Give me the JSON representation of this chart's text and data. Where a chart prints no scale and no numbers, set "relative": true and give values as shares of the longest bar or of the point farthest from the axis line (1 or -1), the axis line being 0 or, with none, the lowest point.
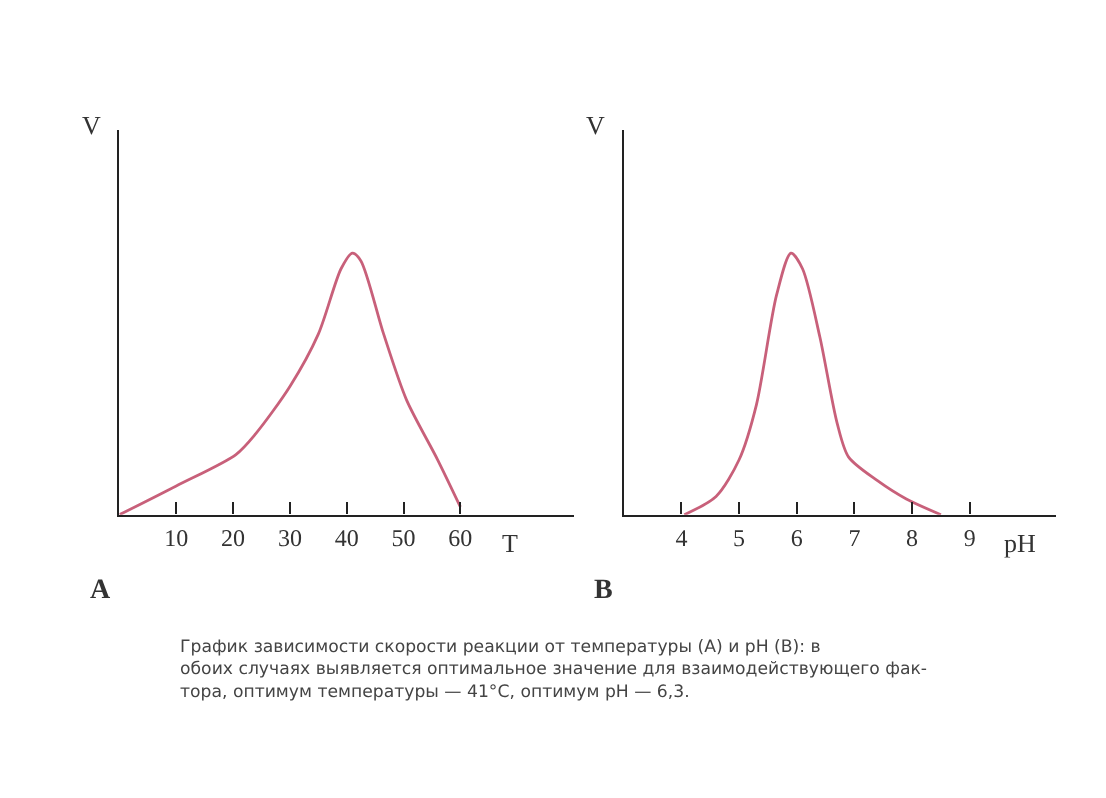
{
  "chart_data": [
    {
      "type": "line",
      "relative": true,
      "xlabel": "T",
      "ylabel": "V",
      "tick_labels": "x",
      "marker": "none",
      "line_style": "solid",
      "xlim": [
        0,
        80
      ],
      "xticks": [
        10,
        20,
        30,
        40,
        50,
        60
      ],
      "x": [
        0,
        10,
        20.5,
        24,
        30,
        35,
        39,
        41,
        42.5,
        46.5,
        50.5,
        56,
        60
      ],
      "series": [
        {
          "color": "#c8607a",
          "values": [
            0,
            0.11,
            0.23,
            0.31,
            0.49,
            0.69,
            0.94,
            1,
            0.97,
            0.69,
            0.44,
            0.21,
            0.03
          ]
        }
      ],
      "annotations": [
        "A"
      ]
    },
    {
      "type": "line",
      "relative": true,
      "xlabel": "pH",
      "ylabel": "V",
      "tick_labels": "x",
      "marker": "none",
      "line_style": "solid",
      "xlim": [
        3,
        10.5
      ],
      "xticks": [
        4,
        5,
        6,
        7,
        8,
        9
      ],
      "x": [
        4.05,
        4.6,
        5,
        5.3,
        5.65,
        5.9,
        6.1,
        6.4,
        6.7,
        6.9,
        7.4,
        7.9,
        8.5
      ],
      "series": [
        {
          "color": "#c8607a",
          "values": [
            0,
            0.07,
            0.21,
            0.42,
            0.84,
            1,
            0.94,
            0.68,
            0.35,
            0.22,
            0.13,
            0.06,
            0
          ]
        }
      ],
      "annotations": [
        "B",
        "График зависимости скорости реакции от температуры (A) и pH (B): в\nобоих случаях выявляется оптимальное значение для взаимодействующего фак-\nтора, оптимум температуры — 41°С, оптимум pH — 6,3."
      ]
    }
  ]
}
